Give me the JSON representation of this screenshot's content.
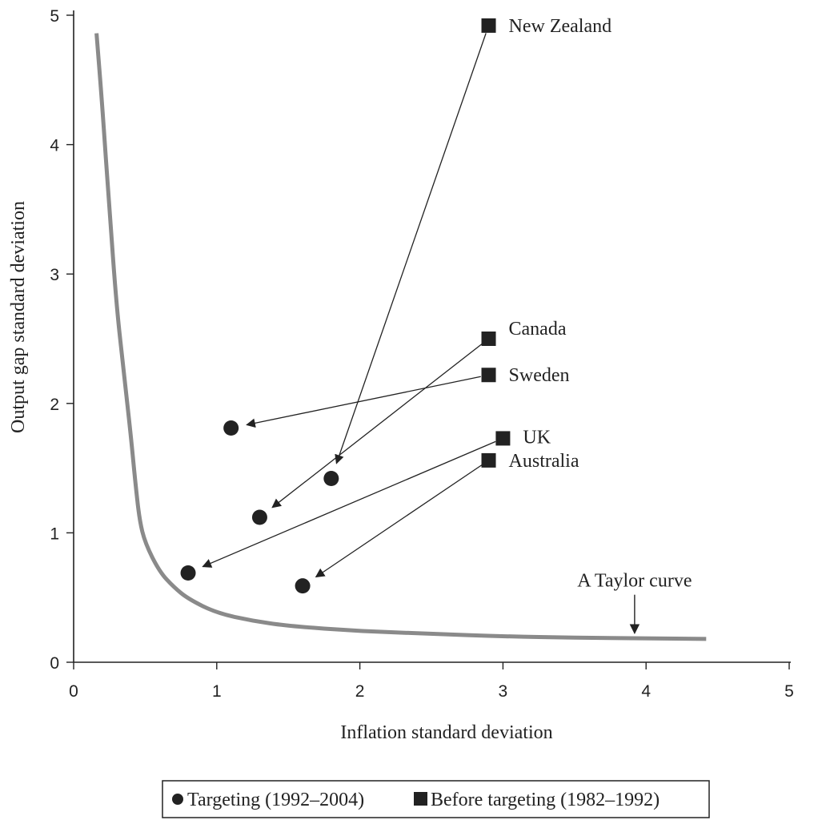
{
  "chart_data": {
    "type": "scatter",
    "xlabel": "Inflation standard deviation",
    "ylabel": "Output gap standard deviation",
    "xlim": [
      0,
      5
    ],
    "ylim": [
      0,
      5
    ],
    "xticks": [
      0,
      1,
      2,
      3,
      4,
      5
    ],
    "yticks": [
      0,
      1,
      2,
      3,
      4,
      5
    ],
    "grid": false,
    "legend_position": "bottom",
    "colors": {
      "markers": "#222222",
      "curve": "#8a8a8a",
      "arrows": "#222222"
    },
    "series": [
      {
        "name": "Targeting (1992–2004)",
        "marker": "circle",
        "points": [
          {
            "country": "New Zealand",
            "x": 1.8,
            "y": 1.42
          },
          {
            "country": "Canada",
            "x": 1.3,
            "y": 1.12
          },
          {
            "country": "Sweden",
            "x": 1.1,
            "y": 1.81
          },
          {
            "country": "UK",
            "x": 0.8,
            "y": 0.69
          },
          {
            "country": "Australia",
            "x": 1.6,
            "y": 0.59
          }
        ]
      },
      {
        "name": "Before targeting (1982–1992)",
        "marker": "square",
        "points": [
          {
            "country": "New Zealand",
            "x": 2.9,
            "y": 4.92
          },
          {
            "country": "Canada",
            "x": 2.9,
            "y": 2.5
          },
          {
            "country": "Sweden",
            "x": 2.9,
            "y": 2.22
          },
          {
            "country": "UK",
            "x": 3.0,
            "y": 1.73
          },
          {
            "country": "Australia",
            "x": 2.9,
            "y": 1.56
          }
        ]
      }
    ],
    "country_labels": [
      "New Zealand",
      "Canada",
      "Sweden",
      "UK",
      "Australia"
    ],
    "taylor_curve": {
      "label": "A Taylor curve",
      "label_points_to": {
        "x": 3.92,
        "y": 0.2
      },
      "points": [
        [
          0.16,
          4.86
        ],
        [
          0.2,
          4.3
        ],
        [
          0.25,
          3.5
        ],
        [
          0.3,
          2.75
        ],
        [
          0.35,
          2.25
        ],
        [
          0.4,
          1.75
        ],
        [
          0.43,
          1.4
        ],
        [
          0.46,
          1.1
        ],
        [
          0.5,
          0.92
        ],
        [
          0.6,
          0.7
        ],
        [
          0.7,
          0.58
        ],
        [
          0.8,
          0.49
        ],
        [
          1.0,
          0.38
        ],
        [
          1.25,
          0.32
        ],
        [
          1.5,
          0.28
        ],
        [
          2.0,
          0.24
        ],
        [
          2.5,
          0.22
        ],
        [
          3.0,
          0.2
        ],
        [
          3.5,
          0.19
        ],
        [
          4.0,
          0.185
        ],
        [
          4.42,
          0.18
        ]
      ]
    }
  }
}
